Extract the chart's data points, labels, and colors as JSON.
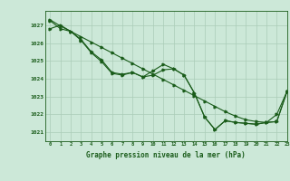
{
  "title": "Graphe pression niveau de la mer (hPa)",
  "bg_color": "#cce8d8",
  "grid_color": "#aaccb8",
  "line_color": "#1a5c1a",
  "xlim": [
    -0.5,
    23
  ],
  "ylim": [
    1020.5,
    1027.8
  ],
  "yticks": [
    1021,
    1022,
    1023,
    1024,
    1025,
    1026,
    1027
  ],
  "xticks": [
    0,
    1,
    2,
    3,
    4,
    5,
    6,
    7,
    8,
    9,
    10,
    11,
    12,
    13,
    14,
    15,
    16,
    17,
    18,
    19,
    20,
    21,
    22,
    23
  ],
  "series1_x": [
    0,
    1,
    2,
    3,
    4,
    5,
    6,
    7,
    8,
    9,
    10,
    11,
    12,
    13,
    14,
    15,
    16,
    17,
    18,
    19,
    20,
    21,
    22,
    23
  ],
  "series1_y": [
    1027.3,
    1026.95,
    1026.65,
    1026.35,
    1026.05,
    1025.75,
    1025.45,
    1025.15,
    1024.85,
    1024.55,
    1024.25,
    1023.95,
    1023.65,
    1023.35,
    1023.05,
    1022.75,
    1022.45,
    1022.15,
    1021.9,
    1021.7,
    1021.6,
    1021.55,
    1021.6,
    1023.3
  ],
  "series2_x": [
    0,
    1,
    2,
    3,
    4,
    5,
    6,
    7,
    8,
    9,
    10,
    11,
    12,
    13,
    14,
    15,
    16,
    17,
    18,
    19,
    20,
    21,
    22,
    23
  ],
  "series2_y": [
    1026.8,
    1027.0,
    1026.65,
    1026.2,
    1025.5,
    1025.05,
    1024.35,
    1024.25,
    1024.35,
    1024.1,
    1024.45,
    1024.8,
    1024.55,
    1024.2,
    1023.2,
    1021.85,
    1021.15,
    1021.65,
    1021.55,
    1021.5,
    1021.45,
    1021.55,
    1022.0,
    1023.3
  ],
  "series3_x": [
    0,
    1,
    2,
    3,
    4,
    5,
    6,
    7,
    8,
    9,
    10,
    11,
    12,
    13,
    14,
    15,
    16,
    17,
    18,
    19,
    20,
    21,
    22,
    23
  ],
  "series3_y": [
    1027.25,
    1026.8,
    1026.65,
    1026.15,
    1025.45,
    1024.95,
    1024.3,
    1024.2,
    1024.35,
    1024.1,
    1024.2,
    1024.5,
    1024.55,
    1024.2,
    1023.2,
    1021.85,
    1021.15,
    1021.65,
    1021.55,
    1021.5,
    1021.45,
    1021.55,
    1021.6,
    1023.3
  ]
}
